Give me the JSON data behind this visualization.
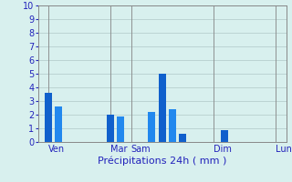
{
  "bars": [
    {
      "x": 1,
      "height": 3.6,
      "color": "#1060cc"
    },
    {
      "x": 2,
      "height": 2.6,
      "color": "#2288ee"
    },
    {
      "x": 7,
      "height": 2.0,
      "color": "#1060cc"
    },
    {
      "x": 8,
      "height": 1.9,
      "color": "#2288ee"
    },
    {
      "x": 11,
      "height": 2.2,
      "color": "#2288ee"
    },
    {
      "x": 12,
      "height": 5.0,
      "color": "#1060cc"
    },
    {
      "x": 13,
      "height": 2.4,
      "color": "#2288ee"
    },
    {
      "x": 14,
      "height": 0.6,
      "color": "#1060cc"
    },
    {
      "x": 18,
      "height": 0.9,
      "color": "#1060cc"
    }
  ],
  "day_ticks": [
    1,
    7,
    9,
    17,
    23
  ],
  "day_labels": [
    "Ven",
    "Mar",
    "Sam",
    "Dim",
    "Lun"
  ],
  "xlabel": "Précipitations 24h ( mm )",
  "ylim": [
    0,
    10
  ],
  "yticks": [
    0,
    1,
    2,
    3,
    4,
    5,
    6,
    7,
    8,
    9,
    10
  ],
  "xlim": [
    0,
    24
  ],
  "background_color": "#d8f0ee",
  "grid_color": "#b0c8c8",
  "bar_width": 0.7,
  "label_color": "#2222bb",
  "xlabel_fontsize": 8,
  "tick_fontsize": 7
}
